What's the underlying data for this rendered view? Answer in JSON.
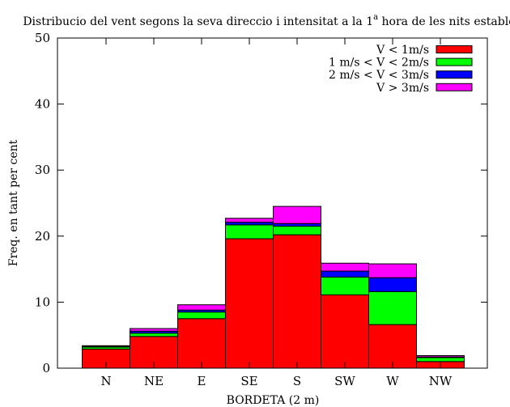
{
  "chart_data": {
    "type": "bar",
    "stacked": true,
    "title": "Distribucio del vent segons la seva direccio i intensitat a la 1",
    "title_superscript": "a",
    "title_suffix": " hora de les nits estables",
    "xlabel": "BORDETA (2 m)",
    "ylabel": "Freq. en tant per cent",
    "ylim": [
      0,
      50
    ],
    "yticks": [
      0,
      10,
      20,
      30,
      40,
      50
    ],
    "grid": false,
    "legend_position": "top-right",
    "categories": [
      "N",
      "NE",
      "E",
      "SE",
      "S",
      "SW",
      "W",
      "NW"
    ],
    "series": [
      {
        "name": "V < 1m/s",
        "color": "#ff0000",
        "values": [
          2.9,
          4.8,
          7.5,
          19.6,
          20.2,
          11.1,
          6.6,
          1.0
        ]
      },
      {
        "name": "1 m/s < V < 2m/s",
        "color": "#00ff00",
        "values": [
          0.3,
          0.5,
          1.0,
          2.1,
          1.3,
          2.7,
          5.0,
          0.6
        ]
      },
      {
        "name": "2 m/s < V < 3m/s",
        "color": "#0000ff",
        "values": [
          0.1,
          0.3,
          0.3,
          0.4,
          0.4,
          0.9,
          2.1,
          0.1
        ]
      },
      {
        "name": "V > 3m/s",
        "color": "#ff00ff",
        "values": [
          0.1,
          0.4,
          0.8,
          0.6,
          2.6,
          1.2,
          2.1,
          0.2
        ]
      }
    ]
  }
}
